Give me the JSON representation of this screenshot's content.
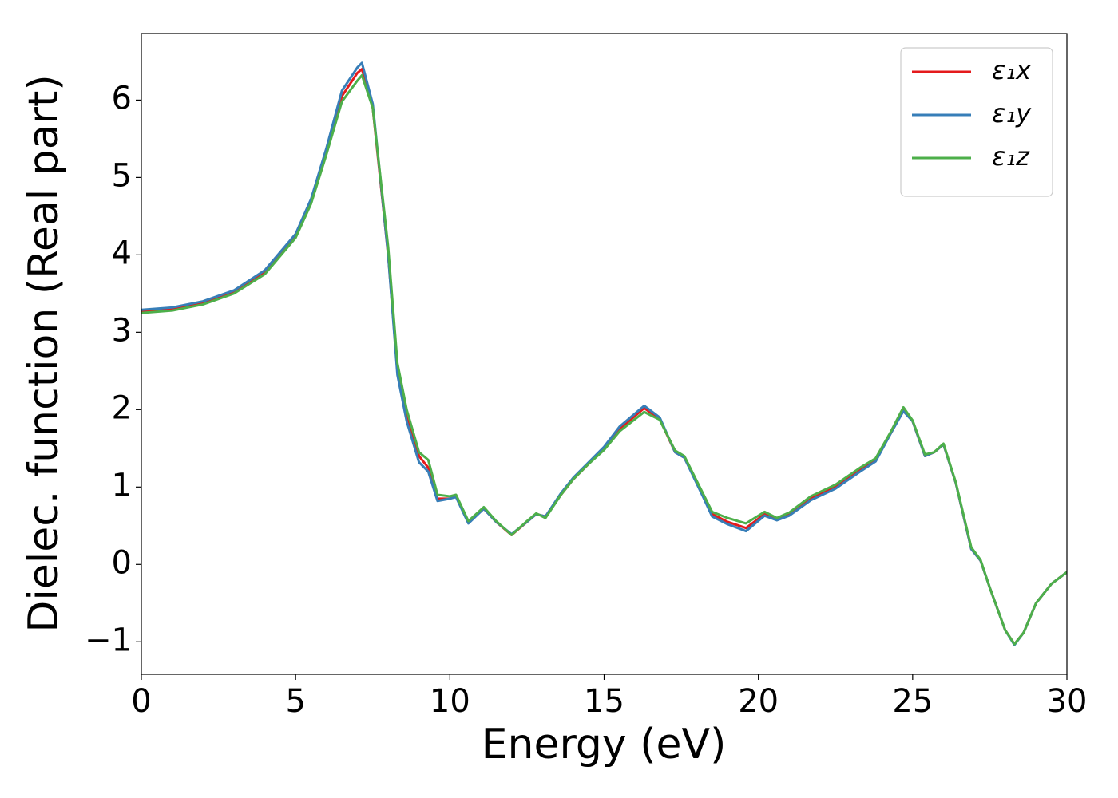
{
  "chart_data": {
    "type": "line",
    "xlabel": "Energy (eV)",
    "ylabel": "Dielec. function (Real part)",
    "x": [
      0,
      1,
      2,
      3,
      4,
      5,
      5.5,
      6,
      6.5,
      7,
      7.15,
      7.5,
      8,
      8.3,
      8.6,
      9,
      9.3,
      9.6,
      10,
      10.2,
      10.6,
      11.1,
      11.5,
      12,
      12.5,
      12.8,
      13.1,
      13.6,
      14,
      14.5,
      15,
      15.5,
      16.3,
      16.8,
      17.3,
      17.6,
      18.2,
      18.5,
      19,
      19.6,
      20.2,
      20.6,
      21,
      21.7,
      22.5,
      23.3,
      23.8,
      24.3,
      24.7,
      25,
      25.4,
      25.7,
      26,
      26.4,
      26.9,
      27.2,
      27.5,
      28,
      28.3,
      28.6,
      29,
      29.5,
      30
    ],
    "series": [
      {
        "name": "ε₁x",
        "color": "#e41a1c",
        "values": [
          3.27,
          3.3,
          3.38,
          3.52,
          3.78,
          4.25,
          4.7,
          5.35,
          6.05,
          6.35,
          6.4,
          5.9,
          4.0,
          2.5,
          1.9,
          1.4,
          1.25,
          0.85,
          0.85,
          0.88,
          0.55,
          0.72,
          0.55,
          0.38,
          0.55,
          0.65,
          0.62,
          0.9,
          1.1,
          1.3,
          1.5,
          1.75,
          2.02,
          1.88,
          1.45,
          1.38,
          0.9,
          0.65,
          0.55,
          0.47,
          0.65,
          0.58,
          0.65,
          0.85,
          1.0,
          1.22,
          1.35,
          1.7,
          2.0,
          1.85,
          1.4,
          1.45,
          1.55,
          1.05,
          0.2,
          0.05,
          -0.3,
          -0.85,
          -1.03,
          -0.88,
          -0.5,
          -0.25,
          -0.1
        ]
      },
      {
        "name": "ε₁y",
        "color": "#377eb8",
        "values": [
          3.29,
          3.32,
          3.4,
          3.54,
          3.8,
          4.27,
          4.72,
          5.38,
          6.12,
          6.42,
          6.48,
          5.95,
          4.0,
          2.45,
          1.85,
          1.32,
          1.2,
          0.82,
          0.85,
          0.87,
          0.53,
          0.72,
          0.55,
          0.39,
          0.55,
          0.65,
          0.62,
          0.92,
          1.12,
          1.32,
          1.52,
          1.78,
          2.05,
          1.9,
          1.45,
          1.38,
          0.88,
          0.62,
          0.52,
          0.43,
          0.63,
          0.57,
          0.63,
          0.83,
          0.98,
          1.2,
          1.33,
          1.7,
          1.98,
          1.85,
          1.4,
          1.45,
          1.55,
          1.05,
          0.2,
          0.05,
          -0.3,
          -0.85,
          -1.04,
          -0.88,
          -0.5,
          -0.25,
          -0.1
        ]
      },
      {
        "name": "ε₁z",
        "color": "#4daf4a",
        "values": [
          3.25,
          3.28,
          3.36,
          3.5,
          3.75,
          4.22,
          4.66,
          5.3,
          5.98,
          6.25,
          6.32,
          5.9,
          4.1,
          2.6,
          2.0,
          1.45,
          1.35,
          0.9,
          0.88,
          0.9,
          0.56,
          0.74,
          0.56,
          0.38,
          0.56,
          0.66,
          0.6,
          0.9,
          1.1,
          1.3,
          1.48,
          1.72,
          1.97,
          1.87,
          1.47,
          1.4,
          0.92,
          0.68,
          0.6,
          0.53,
          0.68,
          0.6,
          0.67,
          0.88,
          1.03,
          1.25,
          1.37,
          1.72,
          2.03,
          1.86,
          1.42,
          1.45,
          1.56,
          1.06,
          0.22,
          0.06,
          -0.3,
          -0.85,
          -1.03,
          -0.88,
          -0.5,
          -0.25,
          -0.1
        ]
      }
    ],
    "xlim": [
      0,
      30
    ],
    "xticks": [
      0,
      5,
      10,
      15,
      20,
      25,
      30
    ],
    "ylim": [
      -1.42,
      6.86
    ],
    "yticks": [
      {
        "value": -1,
        "label": "−1"
      },
      0,
      1,
      2,
      3,
      4,
      5,
      6
    ],
    "grid": false,
    "legend": "upper right"
  }
}
